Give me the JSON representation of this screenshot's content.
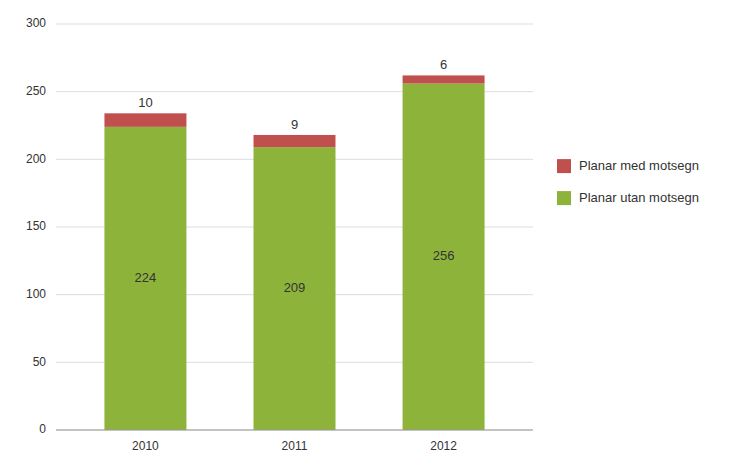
{
  "chart_data": {
    "type": "bar",
    "stacked": true,
    "categories": [
      "2010",
      "2011",
      "2012"
    ],
    "series": [
      {
        "name": "Planar utan motsegn",
        "color": "#8db33a",
        "values": [
          224,
          209,
          256
        ]
      },
      {
        "name": "Planar med motsegn",
        "color": "#c0504d",
        "values": [
          10,
          9,
          6
        ]
      }
    ],
    "ylim": [
      0,
      300
    ],
    "yticks": [
      0,
      50,
      100,
      150,
      200,
      250,
      300
    ],
    "grid": true,
    "legend": "right",
    "data_labels": true
  }
}
